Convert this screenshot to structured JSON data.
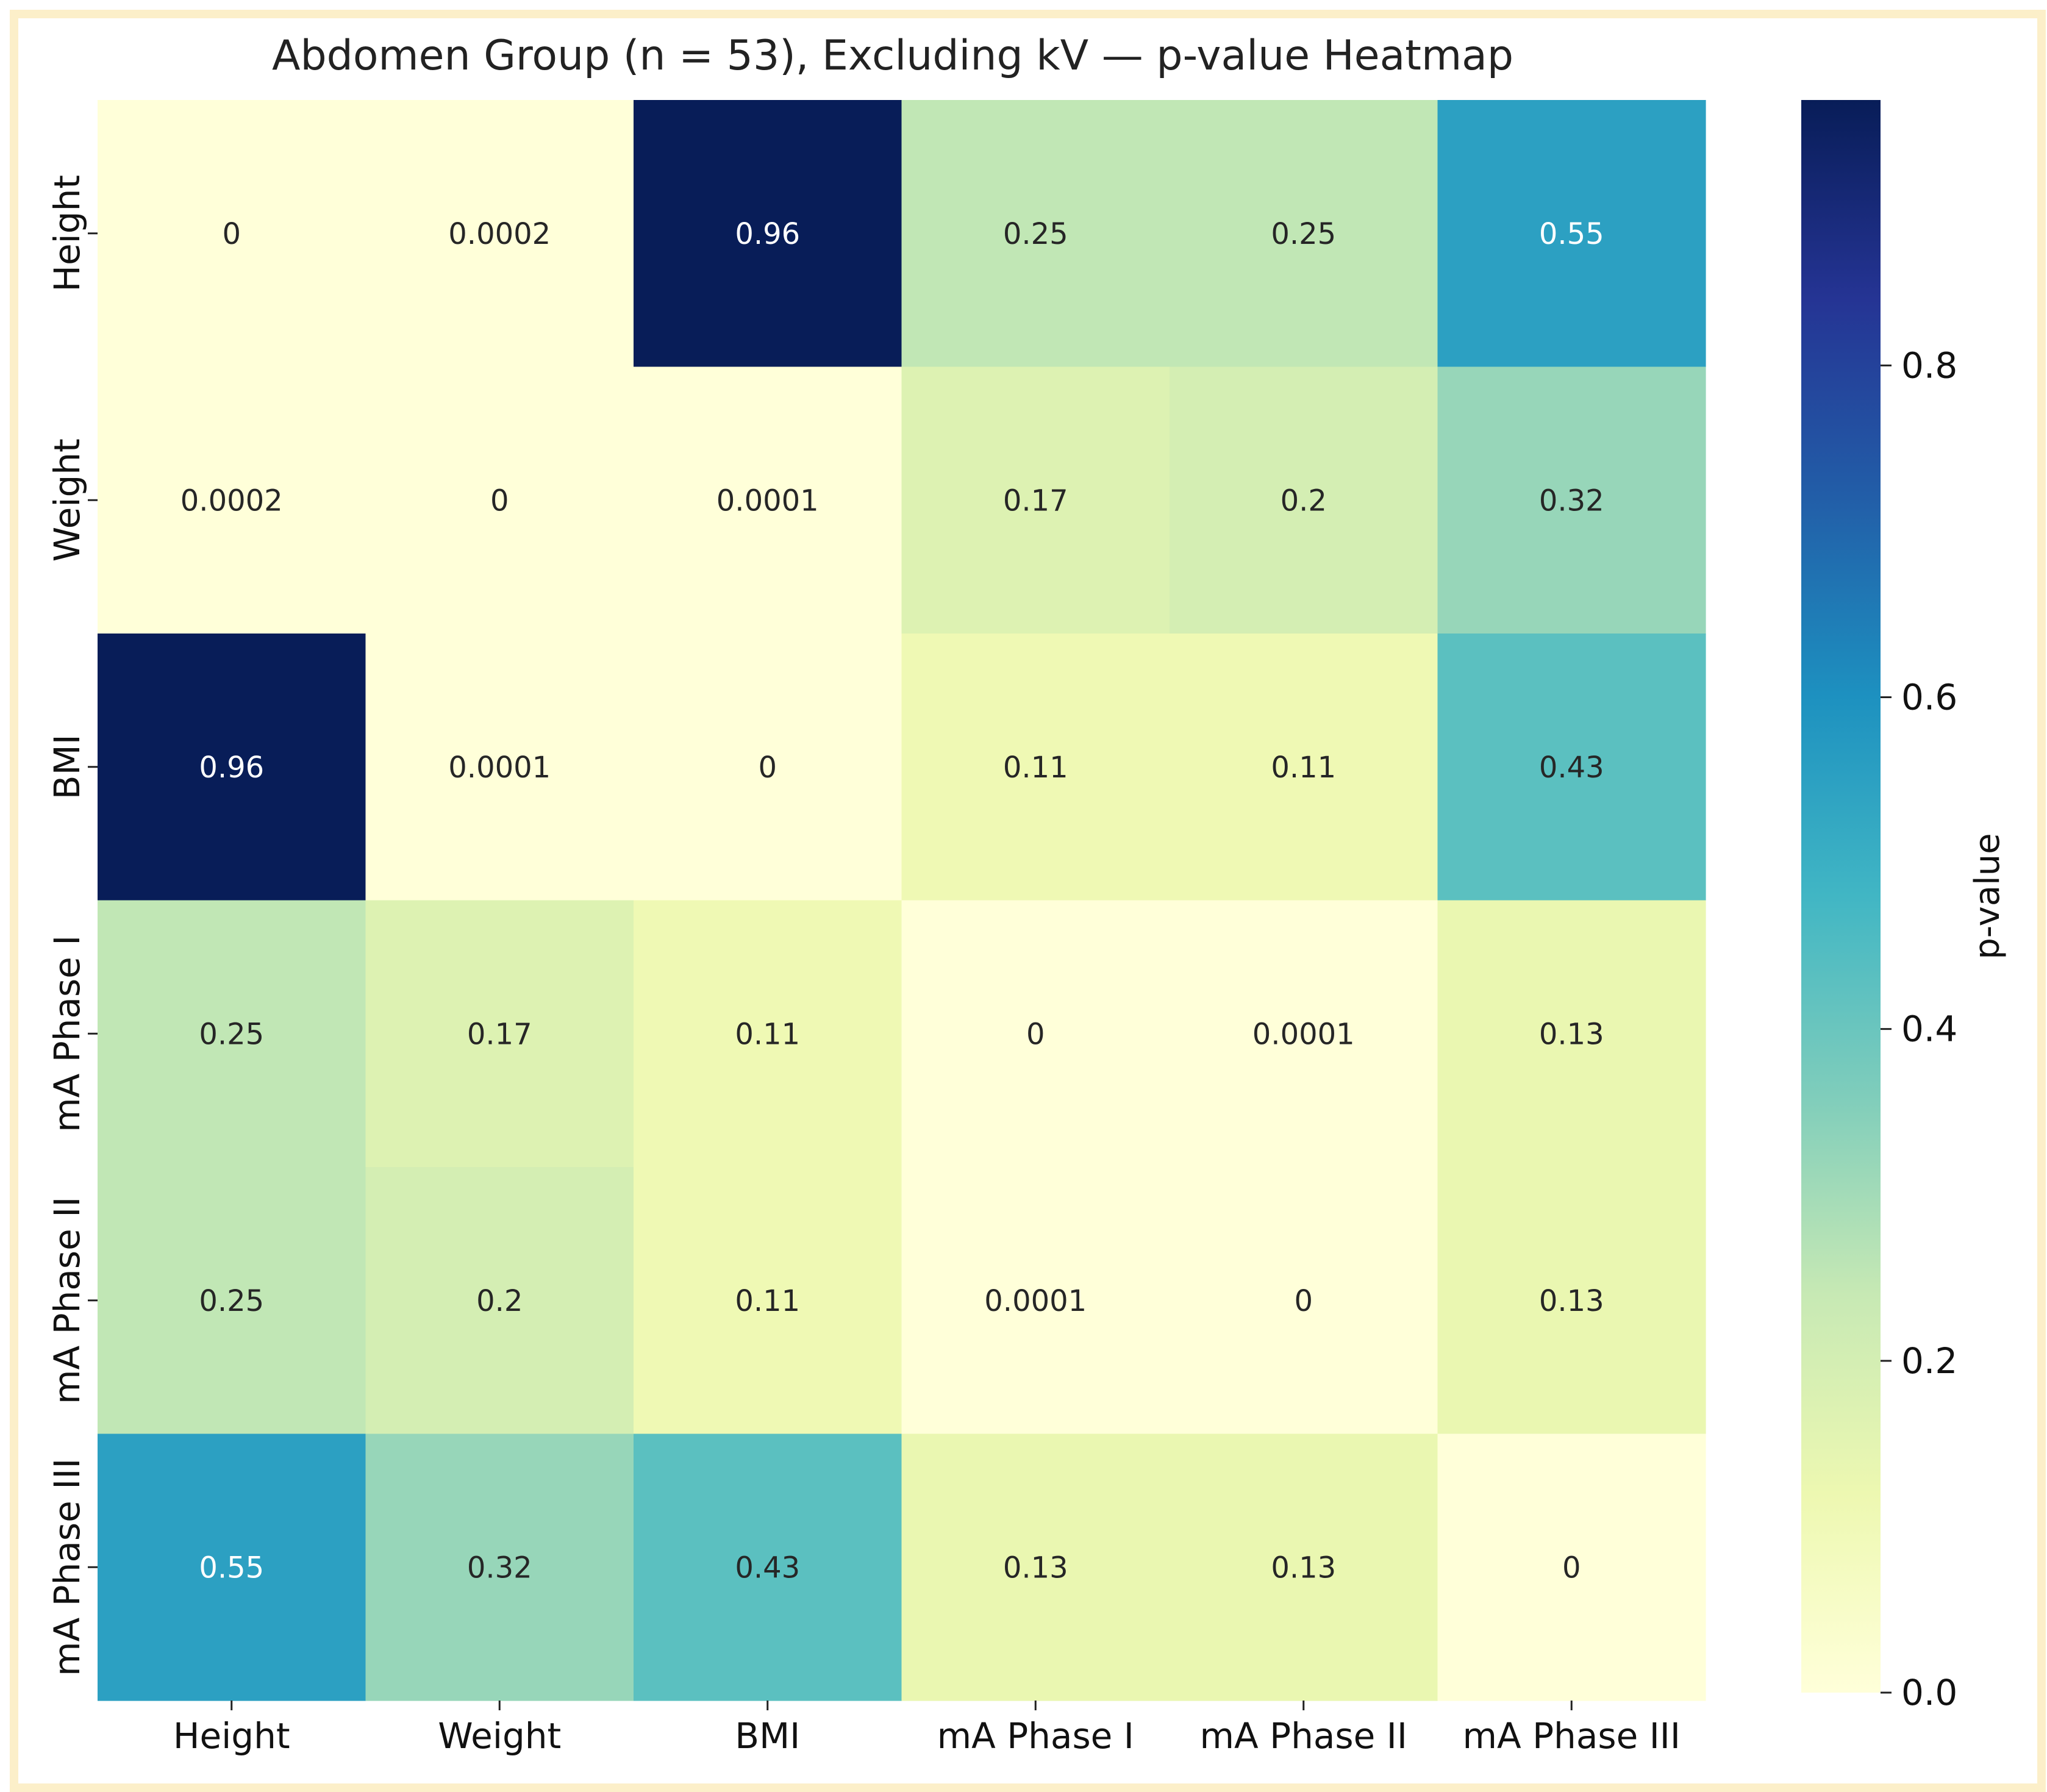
{
  "chart_data": {
    "type": "heatmap",
    "title": "Abdomen Group (n = 53), Excluding kV — p-value Heatmap",
    "xlabel": "",
    "ylabel": "",
    "x_categories": [
      "Height",
      "Weight",
      "BMI",
      "mA Phase I",
      "mA Phase II",
      "mA Phase III"
    ],
    "y_categories": [
      "Height",
      "Weight",
      "BMI",
      "mA Phase I",
      "mA Phase II",
      "mA Phase III"
    ],
    "values": [
      [
        0,
        0.0002,
        0.96,
        0.25,
        0.25,
        0.55
      ],
      [
        0.0002,
        0,
        0.0001,
        0.17,
        0.2,
        0.32
      ],
      [
        0.96,
        0.0001,
        0,
        0.11,
        0.11,
        0.43
      ],
      [
        0.25,
        0.17,
        0.11,
        0,
        0.0001,
        0.13
      ],
      [
        0.25,
        0.2,
        0.11,
        0.0001,
        0,
        0.13
      ],
      [
        0.55,
        0.32,
        0.43,
        0.13,
        0.13,
        0
      ]
    ],
    "cell_labels": [
      [
        "0",
        "0.0002",
        "0.96",
        "0.25",
        "0.25",
        "0.55"
      ],
      [
        "0.0002",
        "0",
        "0.0001",
        "0.17",
        "0.2",
        "0.32"
      ],
      [
        "0.96",
        "0.0001",
        "0",
        "0.11",
        "0.11",
        "0.43"
      ],
      [
        "0.25",
        "0.17",
        "0.11",
        "0",
        "0.0001",
        "0.13"
      ],
      [
        "0.25",
        "0.2",
        "0.11",
        "0.0001",
        "0",
        "0.13"
      ],
      [
        "0.55",
        "0.32",
        "0.43",
        "0.13",
        "0.13",
        "0"
      ]
    ],
    "colorbar": {
      "label": "p-value",
      "range": [
        0,
        0.96
      ],
      "ticks": [
        0.0,
        0.2,
        0.4,
        0.6,
        0.8
      ],
      "tick_labels": [
        "0.0",
        "0.2",
        "0.4",
        "0.6",
        "0.8"
      ],
      "colormap": "YlGnBu",
      "colormap_stops": [
        "#ffffd9",
        "#edf8b1",
        "#c7e9b4",
        "#7fcdbb",
        "#41b6c4",
        "#1d91c0",
        "#225ea8",
        "#253494",
        "#081d58"
      ]
    }
  }
}
